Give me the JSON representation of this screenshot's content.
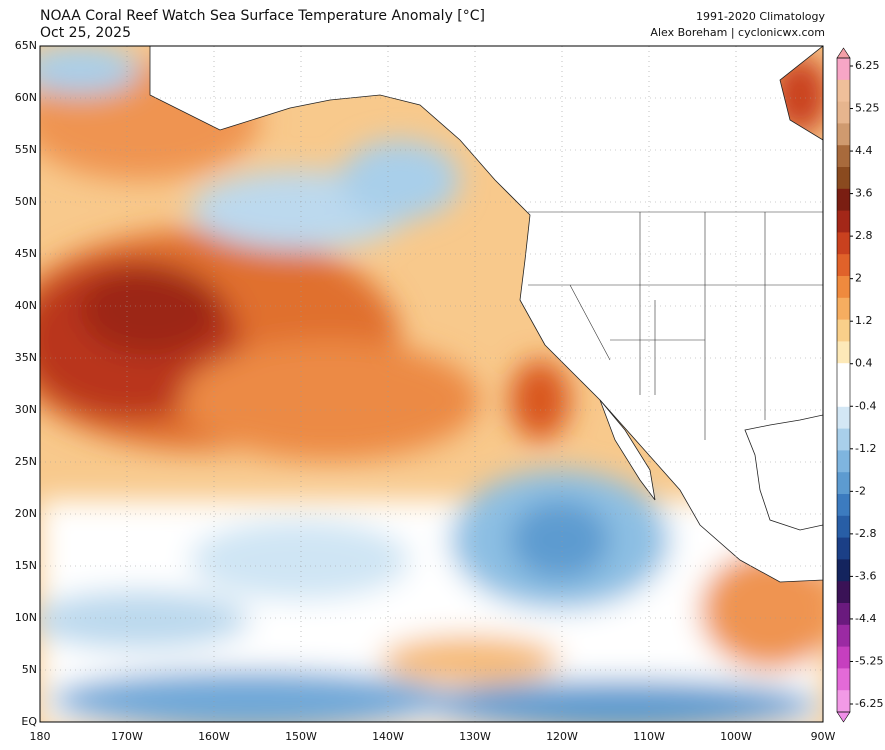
{
  "header": {
    "title": "NOAA Coral Reef Watch Sea Surface Temperature Anomaly [°C]",
    "date": "Oct 25, 2025",
    "climatology": "1991-2020 Climatology",
    "credit": "Alex Boreham | cyclonicwx.com"
  },
  "map": {
    "lat_labels": [
      "65N",
      "60N",
      "55N",
      "50N",
      "45N",
      "40N",
      "35N",
      "30N",
      "25N",
      "20N",
      "15N",
      "10N",
      "5N",
      "EQ"
    ],
    "lon_labels": [
      "180",
      "170W",
      "160W",
      "150W",
      "140W",
      "130W",
      "120W",
      "110W",
      "100W",
      "90W"
    ]
  },
  "colorbar": {
    "ticks": [
      6.25,
      5.25,
      4.4,
      3.6,
      2.8,
      2,
      1.2,
      0.4,
      -0.4,
      -1.2,
      -2,
      -2.8,
      -3.6,
      -4.4,
      -5.25,
      -6.25
    ]
  }
}
